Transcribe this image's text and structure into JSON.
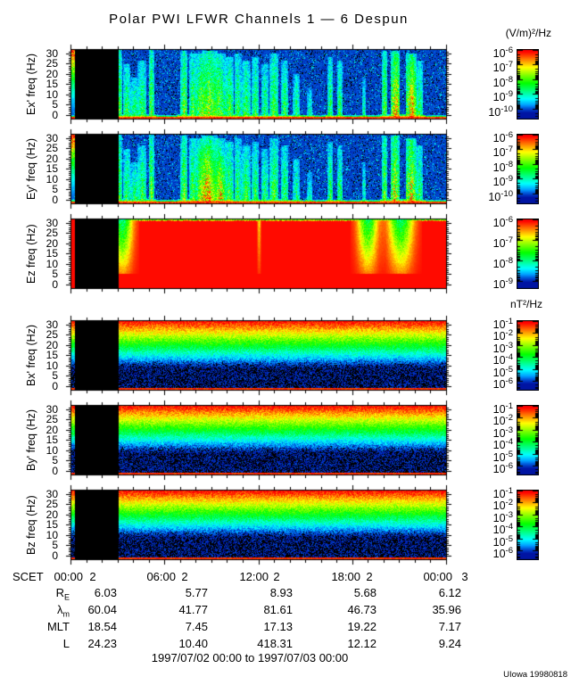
{
  "title": "Polar PWI LFWR Channels 1 — 6 Despun",
  "units_top": "(V/m)²/Hz",
  "units_bottom": "nT²/Hz",
  "caption": "1997/07/02 00:00 to 1997/07/03 00:00",
  "credit": "UIowa 19980818",
  "scet": {
    "label": "SCET",
    "times": [
      "00:00",
      "06:00",
      "12:00",
      "18:00",
      "00:00"
    ],
    "days": [
      "2",
      "2",
      "2",
      "2",
      "3"
    ]
  },
  "table": {
    "rows": [
      {
        "label": "R",
        "sub": "E",
        "values": [
          "6.03",
          "5.77",
          "8.93",
          "5.68",
          "6.12"
        ]
      },
      {
        "label": "λ",
        "sub": "m",
        "values": [
          "60.04",
          "41.77",
          "81.61",
          "46.73",
          "35.96"
        ]
      },
      {
        "label": "MLT",
        "sub": "",
        "values": [
          "18.54",
          "7.45",
          "17.13",
          "19.22",
          "7.17"
        ]
      },
      {
        "label": "L",
        "sub": "",
        "values": [
          "24.23",
          "10.40",
          "418.31",
          "12.12",
          "9.24"
        ]
      }
    ]
  },
  "chart_data": {
    "type": "heatmap",
    "subtype": "spectrogram_stack",
    "time_axis": {
      "label": "SCET",
      "start": "1997/07/02 00:00",
      "end": "1997/07/03 00:00",
      "major_tick_labels": [
        "00:00",
        "06:00",
        "12:00",
        "18:00",
        "00:00"
      ],
      "day_labels": [
        "2",
        "2",
        "2",
        "2",
        "3"
      ],
      "major_tick_interval_hours": 6,
      "minor_tick_interval_hours": 1
    },
    "freq_axis": {
      "unit": "Hz",
      "range": [
        0,
        31
      ],
      "major_ticks": [
        0,
        5,
        10,
        15,
        20,
        25,
        30
      ]
    },
    "freq_tick_labels": [
      "30",
      "25",
      "20",
      "15",
      "10",
      "5",
      "0"
    ],
    "data_gap_frac": {
      "start": 0.0095,
      "end": 0.126
    },
    "panels": [
      {
        "name": "Ex",
        "ylabel": "Ex' freq (Hz)",
        "style": "E",
        "seed": 1,
        "hot": [
          [
            0.868,
            3,
            0.9,
            0.82
          ],
          [
            0.91,
            4,
            0.85,
            0.8
          ]
        ],
        "description": "bursty broadband electric emissions over blue background, red band at lowest frequencies"
      },
      {
        "name": "Ey",
        "ylabel": "Ey' freq (Hz)",
        "style": "E",
        "seed": 2,
        "hot": [
          [
            0.36,
            10,
            0.8,
            0.85
          ],
          [
            0.397,
            6,
            0.65,
            0.8
          ]
        ],
        "description": "bursty broadband electric emissions with intense red patch near 07:30-09:00"
      },
      {
        "name": "Ez",
        "ylabel": "Ez freq (Hz)",
        "style": "Ez",
        "seed": 3,
        "dips": [
          [
            0.135,
            0.018,
            1.0
          ],
          [
            0.5,
            0.003,
            0.35
          ],
          [
            0.79,
            0.018,
            0.9
          ],
          [
            0.878,
            0.022,
            0.95
          ]
        ],
        "description": "saturated intense (red) at all frequencies with quieter green notches near 03:15, 19:00 and 21:00"
      },
      {
        "name": "Bx",
        "ylabel": "Bx' freq (Hz)",
        "style": "B",
        "seed": 4,
        "description": "magnetic noise, intensity smoothly decreasing with frequency (red bottom to blue top)"
      },
      {
        "name": "By",
        "ylabel": "By' freq (Hz)",
        "style": "B",
        "seed": 5,
        "description": "magnetic noise, intensity smoothly decreasing with frequency (red bottom to blue top)"
      },
      {
        "name": "Bz",
        "ylabel": "Bz freq (Hz)",
        "style": "B",
        "seed": 6,
        "description": "magnetic noise, intensity smoothly decreasing with frequency (red bottom to blue top)"
      }
    ],
    "streaks": [
      [
        0.127,
        3,
        1.0,
        0.55
      ],
      [
        0.147,
        4,
        0.75,
        0.5
      ],
      [
        0.168,
        6,
        0.55,
        0.45
      ],
      [
        0.188,
        5,
        0.8,
        0.5
      ],
      [
        0.212,
        3,
        1.0,
        0.6
      ],
      [
        0.3,
        4,
        0.95,
        0.6
      ],
      [
        0.323,
        4,
        0.9,
        0.55
      ],
      [
        0.347,
        8,
        0.9,
        0.62
      ],
      [
        0.368,
        9,
        0.95,
        0.66
      ],
      [
        0.392,
        8,
        0.9,
        0.6
      ],
      [
        0.42,
        5,
        0.85,
        0.55
      ],
      [
        0.443,
        4,
        0.9,
        0.5
      ],
      [
        0.465,
        5,
        0.8,
        0.52
      ],
      [
        0.49,
        4,
        0.85,
        0.5
      ],
      [
        0.515,
        4,
        0.75,
        0.48
      ],
      [
        0.54,
        5,
        0.9,
        0.55
      ],
      [
        0.568,
        4,
        0.8,
        0.5
      ],
      [
        0.6,
        4,
        0.6,
        0.45
      ],
      [
        0.635,
        3,
        0.4,
        0.38
      ],
      [
        0.69,
        3,
        0.85,
        0.5
      ],
      [
        0.715,
        3,
        0.8,
        0.5
      ],
      [
        0.78,
        2,
        0.55,
        0.4
      ],
      [
        0.835,
        3,
        0.95,
        0.6
      ],
      [
        0.862,
        5,
        0.95,
        0.75
      ],
      [
        0.905,
        6,
        0.9,
        0.78
      ],
      [
        0.928,
        4,
        0.8,
        0.5
      ]
    ],
    "colormap": {
      "low": "#0000ff",
      "mid": "#00ff00",
      "high": "#ff0000",
      "no_data": "#000000"
    },
    "colorbars": [
      {
        "unit": "(V/m)²/Hz",
        "base": "10",
        "exponents": [
          "-6",
          "-7",
          "-8",
          "-9",
          "-10"
        ],
        "decade_frac": 0.214
      },
      {
        "unit": "(V/m)²/Hz",
        "base": "10",
        "exponents": [
          "-6",
          "-7",
          "-8",
          "-9",
          "-10"
        ],
        "decade_frac": 0.214
      },
      {
        "unit": "(V/m)²/Hz",
        "base": "10",
        "exponents": [
          "-6",
          "-7",
          "-8",
          "-9"
        ],
        "decade_frac": 0.298
      },
      {
        "unit": "nT²/Hz",
        "base": "10",
        "exponents": [
          "-1",
          "-2",
          "-3",
          "-4",
          "-5",
          "-6"
        ],
        "decade_frac": 0.175
      },
      {
        "unit": "nT²/Hz",
        "base": "10",
        "exponents": [
          "-1",
          "-2",
          "-3",
          "-4",
          "-5",
          "-6"
        ],
        "decade_frac": 0.175
      },
      {
        "unit": "nT²/Hz",
        "base": "10",
        "exponents": [
          "-1",
          "-2",
          "-3",
          "-4",
          "-5",
          "-6"
        ],
        "decade_frac": 0.175
      }
    ]
  }
}
